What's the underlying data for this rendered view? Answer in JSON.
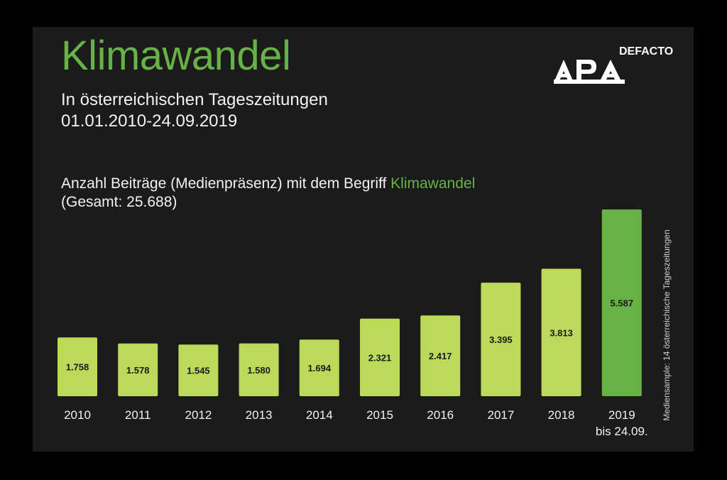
{
  "header": {
    "title": "Klimawandel",
    "subtitle_line1": "In österreichischen Tageszeitungen",
    "subtitle_line2": "01.01.2010-24.09.2019"
  },
  "logo": {
    "brand": "APA",
    "suffix": "DEFACTO"
  },
  "description": {
    "text_before": "Anzahl Beiträge (Medienpräsenz) mit dem Begriff ",
    "highlight": "Klimawandel",
    "total": "(Gesamt: 25.688)"
  },
  "side_note": "Mediensample: 14 österreichische Tageszeitungen",
  "colors": {
    "background": "#1b1b1b",
    "accent_green": "#66b245",
    "bar_light_green": "#bcd95a",
    "bar_highlight_green": "#66b245"
  },
  "chart_data": {
    "type": "bar",
    "title": "Klimawandel",
    "subtitle": "Anzahl Beiträge (Medienpräsenz) mit dem Begriff Klimawandel (Gesamt: 25.688)",
    "xlabel": "",
    "ylabel": "",
    "categories": [
      "2010",
      "2011",
      "2012",
      "2013",
      "2014",
      "2015",
      "2016",
      "2017",
      "2018",
      "2019"
    ],
    "category_sublabels": [
      "",
      "",
      "",
      "",
      "",
      "",
      "",
      "",
      "",
      "bis 24.09."
    ],
    "values": [
      1758,
      1578,
      1545,
      1580,
      1694,
      2321,
      2417,
      3395,
      3813,
      5587
    ],
    "value_labels": [
      "1.758",
      "1.578",
      "1.545",
      "1.580",
      "1.694",
      "2.321",
      "2.417",
      "3.395",
      "3.813",
      "5.587"
    ],
    "highlighted": [
      false,
      false,
      false,
      false,
      false,
      false,
      false,
      false,
      false,
      true
    ],
    "ylim": [
      0,
      5587
    ],
    "grid": false,
    "legend": "none"
  }
}
